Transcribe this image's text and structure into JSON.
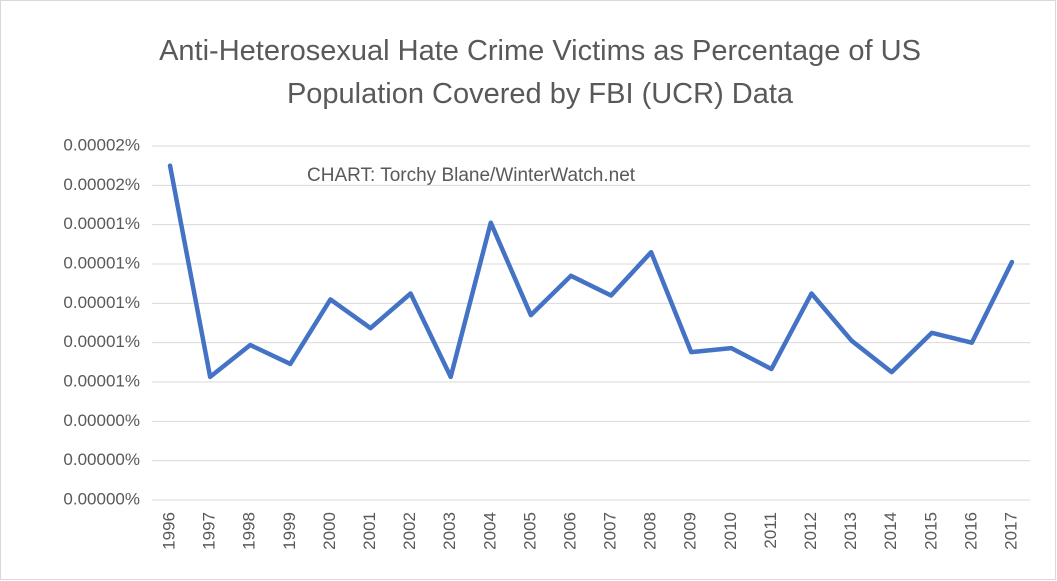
{
  "chart_data": {
    "type": "line",
    "title": "Anti-Heterosexual Hate Crime Victims as Percentage of US Population Covered by FBI (UCR) Data",
    "annotation": "CHART: Torchy Blane/WinterWatch.net",
    "categories": [
      "1996",
      "1997",
      "1998",
      "1999",
      "2000",
      "2001",
      "2002",
      "2003",
      "2004",
      "2005",
      "2006",
      "2007",
      "2008",
      "2009",
      "2010",
      "2011",
      "2012",
      "2013",
      "2014",
      "2015",
      "2016",
      "2017"
    ],
    "values": [
      1.7e-05,
      6.26e-06,
      7.88e-06,
      6.92e-06,
      1.02e-05,
      8.74e-06,
      1.05e-05,
      6.26e-06,
      1.41e-05,
      9.4e-06,
      1.14e-05,
      1.04e-05,
      1.26e-05,
      7.52e-06,
      7.72e-06,
      6.66e-06,
      1.05e-05,
      8.1e-06,
      6.5e-06,
      8.5e-06,
      8e-06,
      1.21e-05
    ],
    "color": "#4472c4",
    "ylim": [
      0,
      1.8e-05
    ],
    "yticks": [
      {
        "value": 0,
        "label": "0.00000%"
      },
      {
        "value": 2e-06,
        "label": "0.00000%"
      },
      {
        "value": 4e-06,
        "label": "0.00000%"
      },
      {
        "value": 6e-06,
        "label": "0.00001%"
      },
      {
        "value": 8e-06,
        "label": "0.00001%"
      },
      {
        "value": 1e-05,
        "label": "0.00001%"
      },
      {
        "value": 1.2e-05,
        "label": "0.00001%"
      },
      {
        "value": 1.4e-05,
        "label": "0.00001%"
      },
      {
        "value": 1.6e-05,
        "label": "0.00002%"
      },
      {
        "value": 1.8e-05,
        "label": "0.00002%"
      }
    ],
    "grid": true
  }
}
